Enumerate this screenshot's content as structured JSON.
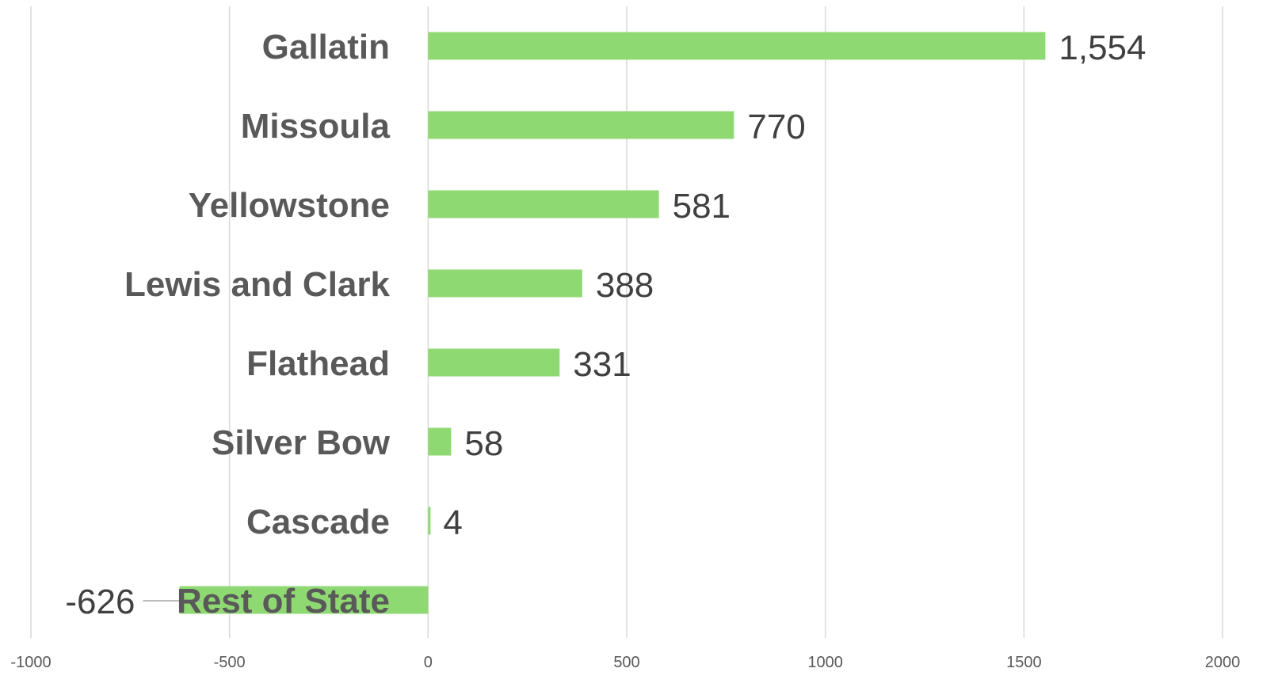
{
  "chart_data": {
    "type": "bar",
    "orientation": "horizontal",
    "categories": [
      "Gallatin",
      "Missoula",
      "Yellowstone",
      "Lewis and Clark",
      "Flathead",
      "Silver Bow",
      "Cascade",
      "Rest of State"
    ],
    "values": [
      1554,
      770,
      581,
      388,
      331,
      58,
      4,
      -626
    ],
    "data_labels": [
      "1,554",
      "770",
      "581",
      "388",
      "331",
      "58",
      "4",
      "-626"
    ],
    "x_ticks": [
      -1000,
      -500,
      0,
      500,
      1000,
      1500,
      2000
    ],
    "x_tick_labels": [
      "-1000",
      "-500",
      "0",
      "500",
      "1000",
      "1500",
      "2000"
    ],
    "xlim": [
      -1000,
      2000
    ],
    "title": "",
    "xlabel": "",
    "ylabel": "",
    "grid": "vertical",
    "legend": "none",
    "bar_color": "#8fd973"
  }
}
